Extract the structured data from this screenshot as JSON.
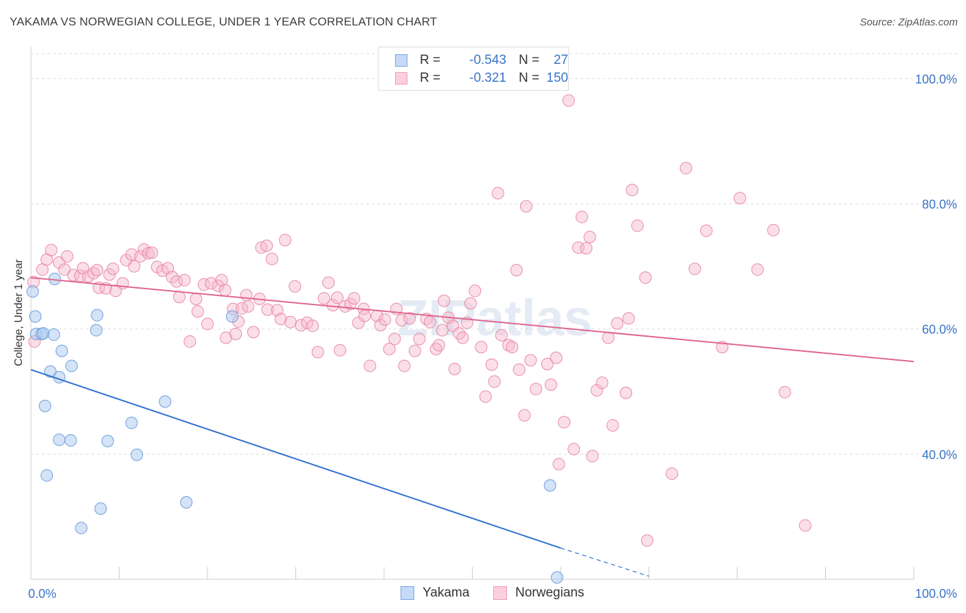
{
  "title": "YAKAMA VS NORWEGIAN COLLEGE, UNDER 1 YEAR CORRELATION CHART",
  "source": "Source: ZipAtlas.com",
  "watermark": "ZIPatlas",
  "legend": {
    "rows": [
      {
        "r_label": "R =",
        "r_value": "-0.543",
        "n_label": "N =",
        "n_value": "27"
      },
      {
        "r_label": "R =",
        "r_value": "-0.321",
        "n_label": "N =",
        "n_value": "150"
      }
    ]
  },
  "bottom_legend": [
    "Yakama",
    "Norwegians"
  ],
  "colors": {
    "yakama_fill": "#a9c8f0",
    "yakama_stroke": "#6f9fdc",
    "yakama_line": "#2f6fcf",
    "norw_fill": "#f6b8cb",
    "norw_stroke": "#e88aa8",
    "norw_line": "#e06690",
    "axis_text": "#3a74c9",
    "grid": "#dddddd"
  },
  "chart_data": {
    "type": "scatter",
    "title": "YAKAMA VS NORWEGIAN COLLEGE, UNDER 1 YEAR CORRELATION CHART",
    "xlabel": "",
    "ylabel": "College, Under 1 year",
    "xlim": [
      0,
      100
    ],
    "ylim": [
      20,
      104
    ],
    "x_tick_labels": [
      {
        "value": 0,
        "label": "0.0%"
      },
      {
        "value": 100,
        "label": "100.0%"
      }
    ],
    "y_tick_labels": [
      {
        "value": 100,
        "label": "100.0%"
      },
      {
        "value": 80,
        "label": "80.0%"
      },
      {
        "value": 60,
        "label": "60.0%"
      },
      {
        "value": 40,
        "label": "40.0%"
      }
    ],
    "series": [
      {
        "name": "Yakama",
        "R": -0.543,
        "N": 27,
        "trend": {
          "x0": 0,
          "y0": 53.5,
          "x1": 60,
          "y1": 25.0,
          "dash_to_x": 70,
          "dash_to_y": 20.5
        },
        "points": [
          [
            0.2,
            66
          ],
          [
            0.5,
            62
          ],
          [
            0.6,
            59.2
          ],
          [
            1.2,
            59.2
          ],
          [
            1.4,
            59.3
          ],
          [
            2.6,
            59.1
          ],
          [
            3.5,
            56.5
          ],
          [
            2.2,
            53.2
          ],
          [
            3.2,
            52.3
          ],
          [
            4.6,
            54.1
          ],
          [
            1.6,
            47.7
          ],
          [
            3.2,
            42.3
          ],
          [
            4.5,
            42.2
          ],
          [
            1.8,
            36.6
          ],
          [
            2.7,
            68
          ],
          [
            7.5,
            62.2
          ],
          [
            7.4,
            59.8
          ],
          [
            11.4,
            45
          ],
          [
            8.7,
            42.1
          ],
          [
            12.0,
            39.9
          ],
          [
            15.2,
            48.4
          ],
          [
            7.9,
            31.3
          ],
          [
            5.7,
            28.2
          ],
          [
            17.6,
            32.3
          ],
          [
            22.8,
            62
          ],
          [
            58.8,
            35
          ],
          [
            59.6,
            20.3
          ]
        ]
      },
      {
        "name": "Norwegians",
        "R": -0.321,
        "N": 150,
        "trend": {
          "x0": 0,
          "y0": 68.2,
          "x1": 100,
          "y1": 54.8
        },
        "points": [
          [
            0.3,
            67.5
          ],
          [
            0.4,
            58
          ],
          [
            1.3,
            69.5
          ],
          [
            1.8,
            71.1
          ],
          [
            2.3,
            72.6
          ],
          [
            3.2,
            70.6
          ],
          [
            3.8,
            69.5
          ],
          [
            4.1,
            71.6
          ],
          [
            4.8,
            68.6
          ],
          [
            5.6,
            68.5
          ],
          [
            5.9,
            69.7
          ],
          [
            6.5,
            68.4
          ],
          [
            7.1,
            68.9
          ],
          [
            7.5,
            69.4
          ],
          [
            7.7,
            66.6
          ],
          [
            8.5,
            66.5
          ],
          [
            8.9,
            68.7
          ],
          [
            9.6,
            66.1
          ],
          [
            9.3,
            69.6
          ],
          [
            10.4,
            67.3
          ],
          [
            10.8,
            71
          ],
          [
            11.4,
            71.9
          ],
          [
            11.7,
            70
          ],
          [
            12.4,
            71.6
          ],
          [
            12.8,
            72.7
          ],
          [
            13.3,
            72.1
          ],
          [
            13.7,
            72.2
          ],
          [
            14.3,
            69.9
          ],
          [
            14.9,
            69.3
          ],
          [
            15.5,
            69.7
          ],
          [
            16.0,
            68.3
          ],
          [
            16.5,
            67.6
          ],
          [
            16.8,
            65.1
          ],
          [
            17.4,
            67.8
          ],
          [
            18.0,
            58
          ],
          [
            18.7,
            64.8
          ],
          [
            18.9,
            62.8
          ],
          [
            19.6,
            67.1
          ],
          [
            20.0,
            60.8
          ],
          [
            20.4,
            67.3
          ],
          [
            21.2,
            66.9
          ],
          [
            21.6,
            67.8
          ],
          [
            22.1,
            58.6
          ],
          [
            22.9,
            63.2
          ],
          [
            23.2,
            59.2
          ],
          [
            23.5,
            61.2
          ],
          [
            23.9,
            63.3
          ],
          [
            24.4,
            65.4
          ],
          [
            24.6,
            63.6
          ],
          [
            25.2,
            59.5
          ],
          [
            25.9,
            64.8
          ],
          [
            26.1,
            73
          ],
          [
            26.7,
            73.3
          ],
          [
            27.3,
            71.2
          ],
          [
            26.8,
            63.1
          ],
          [
            27.9,
            63
          ],
          [
            28.3,
            61.6
          ],
          [
            28.8,
            74.2
          ],
          [
            29.4,
            61.1
          ],
          [
            29.9,
            66.8
          ],
          [
            30.6,
            60.6
          ],
          [
            31.3,
            61
          ],
          [
            31.9,
            60.5
          ],
          [
            32.5,
            56.3
          ],
          [
            33.2,
            64.9
          ],
          [
            33.7,
            67.4
          ],
          [
            34.2,
            63.8
          ],
          [
            34.7,
            65
          ],
          [
            35.0,
            56.6
          ],
          [
            35.6,
            63.6
          ],
          [
            36.2,
            64
          ],
          [
            36.6,
            64.9
          ],
          [
            37.1,
            61
          ],
          [
            37.7,
            63.2
          ],
          [
            37.8,
            62.1
          ],
          [
            38.4,
            54.1
          ],
          [
            39.2,
            62.1
          ],
          [
            39.6,
            60.6
          ],
          [
            40.1,
            61.5
          ],
          [
            40.6,
            56.8
          ],
          [
            41.2,
            58.4
          ],
          [
            41.4,
            63.2
          ],
          [
            42.0,
            61.4
          ],
          [
            42.3,
            54.1
          ],
          [
            42.9,
            61.7
          ],
          [
            43.5,
            56.5
          ],
          [
            44.0,
            58.4
          ],
          [
            44.8,
            61.6
          ],
          [
            45.2,
            61.1
          ],
          [
            45.9,
            56.8
          ],
          [
            46.2,
            57.4
          ],
          [
            46.6,
            59.8
          ],
          [
            46.8,
            64.5
          ],
          [
            47.3,
            61.8
          ],
          [
            47.8,
            60.5
          ],
          [
            48.0,
            53.6
          ],
          [
            48.5,
            59.3
          ],
          [
            48.9,
            58.6
          ],
          [
            49.4,
            61
          ],
          [
            49.8,
            64.1
          ],
          [
            50.3,
            66.1
          ],
          [
            51.0,
            57.1
          ],
          [
            51.5,
            49.2
          ],
          [
            52.2,
            54.3
          ],
          [
            52.5,
            51.6
          ],
          [
            52.9,
            81.7
          ],
          [
            53.3,
            59
          ],
          [
            54.1,
            57.4
          ],
          [
            54.5,
            57.1
          ],
          [
            55.0,
            69.4
          ],
          [
            55.3,
            53.5
          ],
          [
            55.9,
            46.2
          ],
          [
            56.1,
            79.6
          ],
          [
            56.6,
            55
          ],
          [
            57.2,
            50.4
          ],
          [
            58.5,
            54.4
          ],
          [
            58.9,
            51.1
          ],
          [
            59.5,
            55.4
          ],
          [
            60.4,
            45.1
          ],
          [
            60.9,
            96.5
          ],
          [
            61.5,
            40.8
          ],
          [
            62.0,
            73
          ],
          [
            62.4,
            77.9
          ],
          [
            62.9,
            72.9
          ],
          [
            63.3,
            74.7
          ],
          [
            63.6,
            39.7
          ],
          [
            64.1,
            50.2
          ],
          [
            64.7,
            51.4
          ],
          [
            65.4,
            58.6
          ],
          [
            65.9,
            44.6
          ],
          [
            66.4,
            60.9
          ],
          [
            67.4,
            49.8
          ],
          [
            67.7,
            61.7
          ],
          [
            68.1,
            82.2
          ],
          [
            68.7,
            76.5
          ],
          [
            69.6,
            68.2
          ],
          [
            72.6,
            36.9
          ],
          [
            74.2,
            85.7
          ],
          [
            75.2,
            69.6
          ],
          [
            76.5,
            75.7
          ],
          [
            78.3,
            57.1
          ],
          [
            80.3,
            80.9
          ],
          [
            82.3,
            69.5
          ],
          [
            84.1,
            75.8
          ],
          [
            85.4,
            49.9
          ],
          [
            87.7,
            28.6
          ],
          [
            69.8,
            26.2
          ],
          [
            59.8,
            38.4
          ],
          [
            22.0,
            66.2
          ]
        ]
      }
    ]
  }
}
